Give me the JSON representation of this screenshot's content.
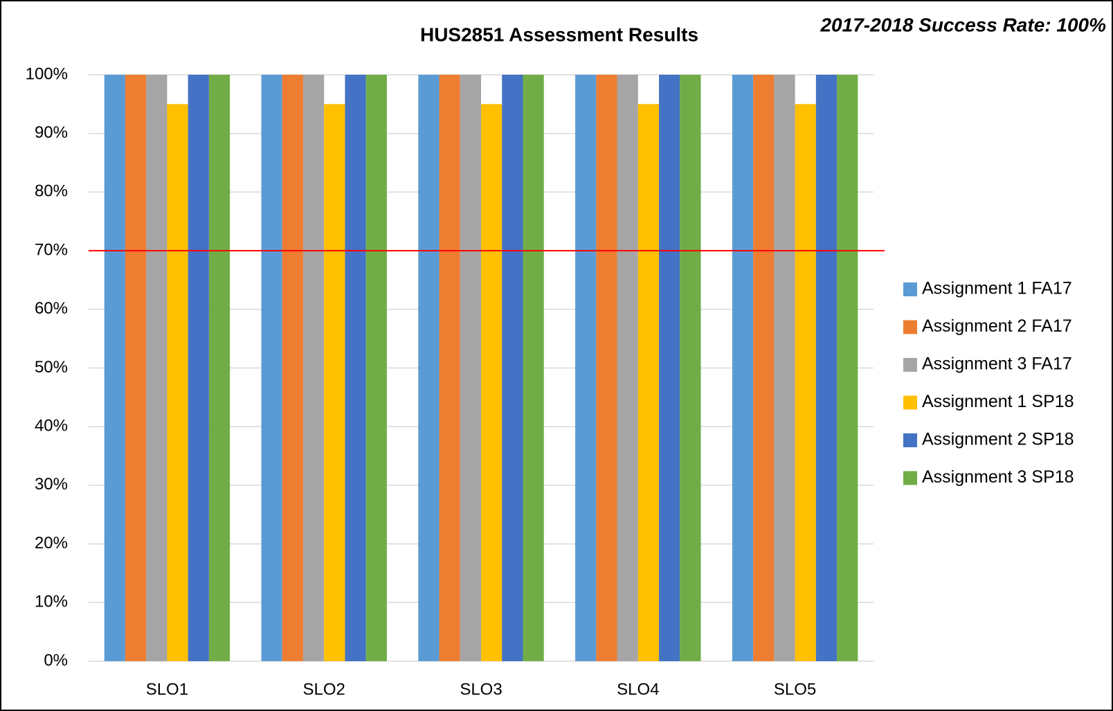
{
  "chart_data": {
    "type": "bar",
    "title": "HUS2851 Assessment Results",
    "annotation": "2017-2018 Success Rate: 100%",
    "categories": [
      "SLO1",
      "SLO2",
      "SLO3",
      "SLO4",
      "SLO5"
    ],
    "series": [
      {
        "name": "Assignment 1 FA17",
        "color": "#5b9bd5",
        "values": [
          100,
          100,
          100,
          100,
          100
        ]
      },
      {
        "name": "Assignment 2 FA17",
        "color": "#ed7d31",
        "values": [
          100,
          100,
          100,
          100,
          100
        ]
      },
      {
        "name": "Assignment 3 FA17",
        "color": "#a5a5a5",
        "values": [
          100,
          100,
          100,
          100,
          100
        ]
      },
      {
        "name": "Assignment 1 SP18",
        "color": "#ffc000",
        "values": [
          95,
          95,
          95,
          95,
          95
        ]
      },
      {
        "name": "Assignment 2 SP18",
        "color": "#4472c4",
        "values": [
          100,
          100,
          100,
          100,
          100
        ]
      },
      {
        "name": "Assignment 3 SP18",
        "color": "#70ad47",
        "values": [
          100,
          100,
          100,
          100,
          100
        ]
      }
    ],
    "ylim": [
      0,
      100
    ],
    "yticks": [
      {
        "value": 0,
        "label": "0%"
      },
      {
        "value": 10,
        "label": "10%"
      },
      {
        "value": 20,
        "label": "20%"
      },
      {
        "value": 30,
        "label": "30%"
      },
      {
        "value": 40,
        "label": "40%"
      },
      {
        "value": 50,
        "label": "50%"
      },
      {
        "value": 60,
        "label": "60%"
      },
      {
        "value": 70,
        "label": "70%"
      },
      {
        "value": 80,
        "label": "80%"
      },
      {
        "value": 90,
        "label": "90%"
      },
      {
        "value": 100,
        "label": "100%"
      }
    ],
    "grid": true,
    "reference_line": {
      "value": 70,
      "color": "#ff0000"
    },
    "legend": "right"
  }
}
